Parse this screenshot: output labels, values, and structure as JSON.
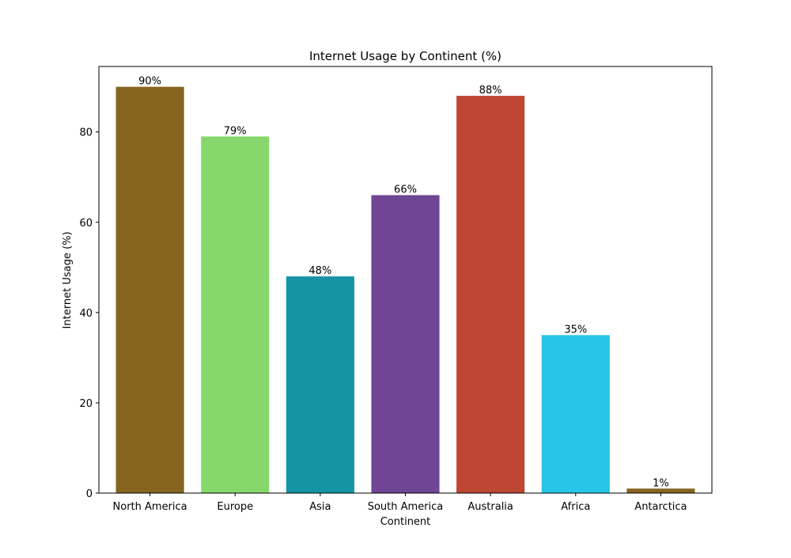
{
  "chart_data": {
    "type": "bar",
    "title": "Internet Usage by Continent (%)",
    "xlabel": "Continent",
    "ylabel": "Internet Usage (%)",
    "categories": [
      "North America",
      "Europe",
      "Asia",
      "South America",
      "Australia",
      "Africa",
      "Antarctica"
    ],
    "values": [
      90,
      79,
      48,
      66,
      88,
      35,
      1
    ],
    "data_labels": [
      "90%",
      "79%",
      "48%",
      "66%",
      "88%",
      "35%",
      "1%"
    ],
    "colors": [
      "#866420",
      "#86d86c",
      "#1493a4",
      "#6f4596",
      "#be4633",
      "#27c5e8",
      "#866420"
    ],
    "ylim": [
      0,
      94.5
    ],
    "yticks": [
      0,
      20,
      40,
      60,
      80
    ],
    "grid": false,
    "legend": "none"
  }
}
